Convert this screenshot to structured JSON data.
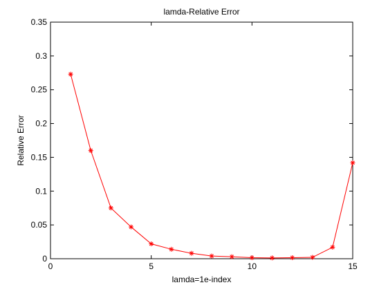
{
  "chart_data": {
    "type": "line",
    "title": "lamda-Relative Error",
    "xlabel": "lamda=1e-index",
    "ylabel": "Relative Error",
    "xlim": [
      0,
      15
    ],
    "ylim": [
      0,
      0.35
    ],
    "xticks": [
      0,
      5,
      10,
      15
    ],
    "xtick_labels": [
      "0",
      "5",
      "10",
      "15"
    ],
    "yticks": [
      0,
      0.05,
      0.1,
      0.15,
      0.2,
      0.25,
      0.3,
      0.35
    ],
    "ytick_labels": [
      "0",
      "0.05",
      "0.1",
      "0.15",
      "0.2",
      "0.25",
      "0.3",
      "0.35"
    ],
    "grid": false,
    "series": [
      {
        "color": "#ff0000",
        "marker": "asterisk",
        "x": [
          1,
          2,
          3,
          4,
          5,
          6,
          7,
          8,
          9,
          10,
          11,
          12,
          13,
          14,
          15
        ],
        "y": [
          0.273,
          0.16,
          0.075,
          0.047,
          0.022,
          0.014,
          0.008,
          0.004,
          0.003,
          0.0015,
          0.0012,
          0.0015,
          0.002,
          0.017,
          0.142
        ]
      }
    ]
  }
}
